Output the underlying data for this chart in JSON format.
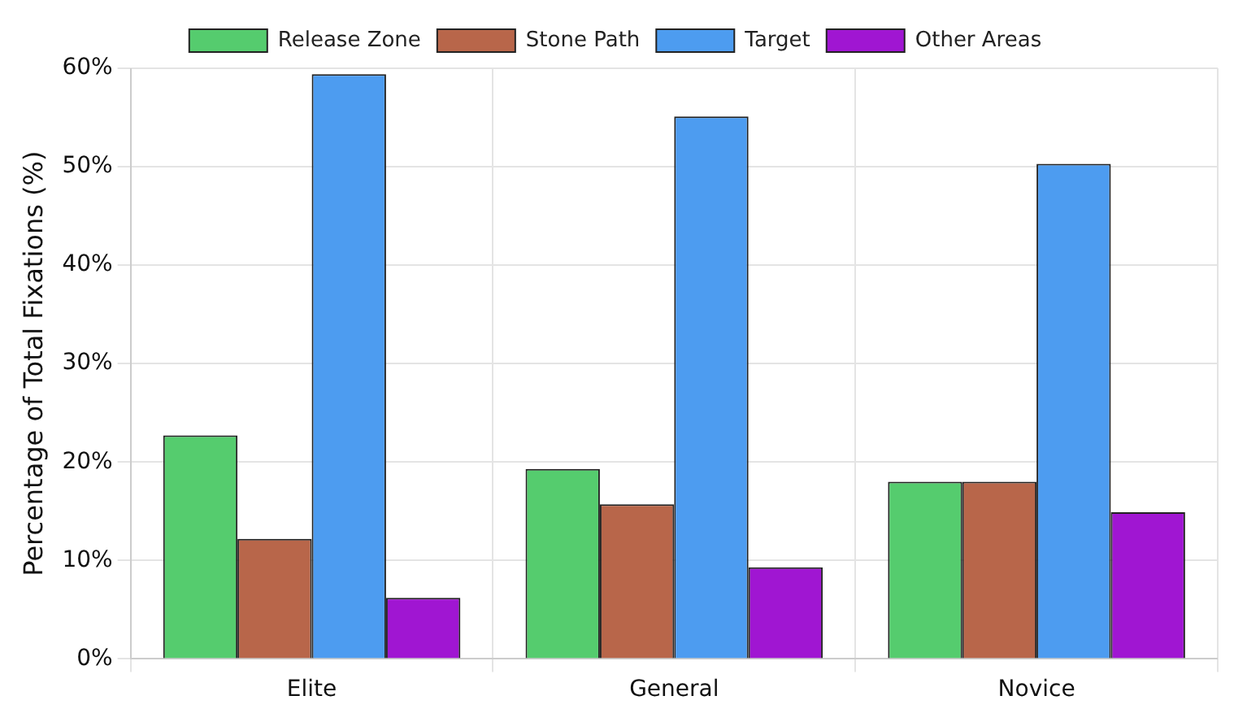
{
  "chart_data": {
    "type": "bar",
    "ylabel": "Percentage of Total Fixations (%)",
    "categories": [
      "Elite",
      "General",
      "Novice"
    ],
    "series": [
      {
        "name": "Release Zone",
        "color": "#55cc6e",
        "values": [
          22.7,
          19.3,
          18.0
        ]
      },
      {
        "name": "Stone Path",
        "color": "#b8664a",
        "values": [
          12.2,
          15.7,
          18.0
        ]
      },
      {
        "name": "Target",
        "color": "#4d9cf0",
        "values": [
          59.4,
          55.1,
          50.3
        ]
      },
      {
        "name": "Other Areas",
        "color": "#a016d2",
        "values": [
          6.2,
          9.3,
          14.9
        ]
      }
    ],
    "ylim": [
      0,
      60
    ],
    "yticks": [
      {
        "value": 0,
        "label": "0%"
      },
      {
        "value": 10,
        "label": "10%"
      },
      {
        "value": 20,
        "label": "20%"
      },
      {
        "value": 30,
        "label": "30%"
      },
      {
        "value": 40,
        "label": "40%"
      },
      {
        "value": 50,
        "label": "50%"
      },
      {
        "value": 60,
        "label": "60%"
      }
    ],
    "grid": true,
    "legend": "top"
  }
}
